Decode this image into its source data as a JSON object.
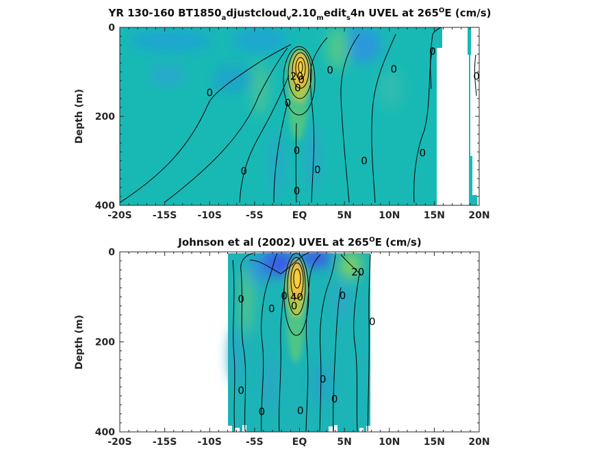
{
  "chart_data": [
    {
      "type": "heatmap",
      "title": "YR 130-160 BT1850_adjustcloud_v2.10_medit_s4n UVEL at 265°E (cm/s)",
      "title_parts": [
        "YR 130-160 BT1850",
        "a",
        "djustcloud",
        "v",
        "2.10",
        "m",
        "edit",
        "s",
        "4n UVEL at 265",
        "O",
        "E (cm/s)"
      ],
      "ylabel": "Depth (m)",
      "x_ticks": [
        "-20S",
        "-15S",
        "-10S",
        "-5S",
        "EQ",
        "5N",
        "10N",
        "15N",
        "20N"
      ],
      "y_ticks": [
        "0",
        "200",
        "400"
      ],
      "xlim": [
        -20,
        20
      ],
      "ylim": [
        400,
        0
      ],
      "contour_labels": [
        {
          "text": "0",
          "x": -10,
          "y": 147
        },
        {
          "text": "0",
          "x": -6.2,
          "y": 323
        },
        {
          "text": "0",
          "x": -1.3,
          "y": 170
        },
        {
          "text": "0",
          "x": -0.3,
          "y": 277
        },
        {
          "text": "0",
          "x": 2.0,
          "y": 320
        },
        {
          "text": "0",
          "x": -0.3,
          "y": 368
        },
        {
          "text": "0",
          "x": 3.4,
          "y": 96
        },
        {
          "text": "0",
          "x": 7.2,
          "y": 300
        },
        {
          "text": "0",
          "x": 10.5,
          "y": 94
        },
        {
          "text": "0",
          "x": 14.8,
          "y": 54
        },
        {
          "text": "0",
          "x": 13.7,
          "y": 282
        },
        {
          "text": "0",
          "x": 19.7,
          "y": 110
        },
        {
          "text": "20",
          "x": -0.3,
          "y": 110
        },
        {
          "text": "0",
          "x": -0.2,
          "y": 136
        },
        {
          "text": "0",
          "x": 0.2,
          "y": 118
        }
      ]
    },
    {
      "type": "heatmap",
      "title": "Johnson et al (2002) UVEL at 265°E (cm/s)",
      "title_parts": [
        "Johnson et al (2002) UVEL at 265",
        "O",
        "E (cm/s)"
      ],
      "ylabel": "Depth (m)",
      "x_ticks": [
        "-20S",
        "-15S",
        "-10S",
        "-5S",
        "EQ",
        "5N",
        "10N",
        "15N",
        "20N"
      ],
      "y_ticks": [
        "0",
        "200",
        "400"
      ],
      "xlim": [
        -20,
        20
      ],
      "ylim": [
        400,
        0
      ],
      "contour_labels": [
        {
          "text": "0",
          "x": -6.5,
          "y": 105
        },
        {
          "text": "0",
          "x": -3.1,
          "y": 126
        },
        {
          "text": "0",
          "x": -1.7,
          "y": 98
        },
        {
          "text": "20",
          "x": 6.5,
          "y": 45
        },
        {
          "text": "40",
          "x": -0.3,
          "y": 100
        },
        {
          "text": "0",
          "x": -0.6,
          "y": 120
        },
        {
          "text": "0",
          "x": 4.8,
          "y": 97
        },
        {
          "text": "0",
          "x": 8.1,
          "y": 155
        },
        {
          "text": "0",
          "x": -6.5,
          "y": 308
        },
        {
          "text": "0",
          "x": -4.2,
          "y": 355
        },
        {
          "text": "0",
          "x": 2.6,
          "y": 283
        },
        {
          "text": "0",
          "x": 3.9,
          "y": 327
        },
        {
          "text": "0",
          "x": 0.1,
          "y": 353
        }
      ]
    }
  ],
  "colors": {
    "background": "#14b9b4",
    "westward": "#2fa0e0",
    "strong_westward": "#3a5be8",
    "weak_eastward": "#5cc88a",
    "eastward": "#b9c64a",
    "core": "#f6b63c",
    "core_center": "#f9d23a",
    "contour": "#000000"
  }
}
